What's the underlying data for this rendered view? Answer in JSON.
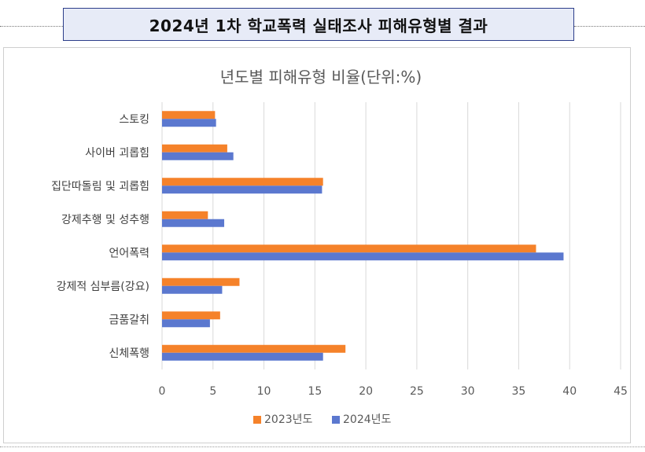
{
  "header": {
    "title": "2024년 1차 학교폭력 실태조사 피해유형별 결과"
  },
  "chart_data": {
    "type": "bar",
    "orientation": "horizontal",
    "title": "년도별 피해유형 비율(단위:%)",
    "categories": [
      "스토킹",
      "사이버 괴롭힘",
      "집단따돌림 및 괴롭힘",
      "강제추행 및 성추행",
      "언어폭력",
      "강제적 심부름(강요)",
      "금품갈취",
      "신체폭행"
    ],
    "series": [
      {
        "name": "2023년도",
        "color": "#f5822a",
        "values": [
          5.2,
          6.4,
          15.8,
          4.5,
          36.7,
          7.6,
          5.7,
          18.0
        ]
      },
      {
        "name": "2024년도",
        "color": "#5b78cf",
        "values": [
          5.3,
          7.0,
          15.7,
          6.1,
          39.4,
          5.9,
          4.7,
          15.8
        ]
      }
    ],
    "xlim": [
      0,
      45
    ],
    "xticks": [
      0,
      5,
      10,
      15,
      20,
      25,
      30,
      35,
      40,
      45
    ],
    "grid": true,
    "legend_position": "bottom"
  }
}
